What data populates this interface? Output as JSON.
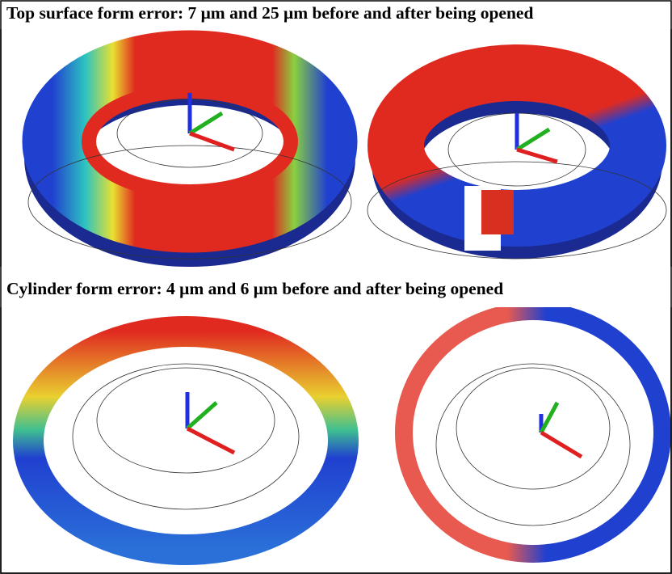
{
  "headings": {
    "top": "Top surface form error: 7 μm and 25 μm before and after being opened",
    "bottom": "Cylinder form error: 4 μm and 6 μm before and after being opened"
  }
}
